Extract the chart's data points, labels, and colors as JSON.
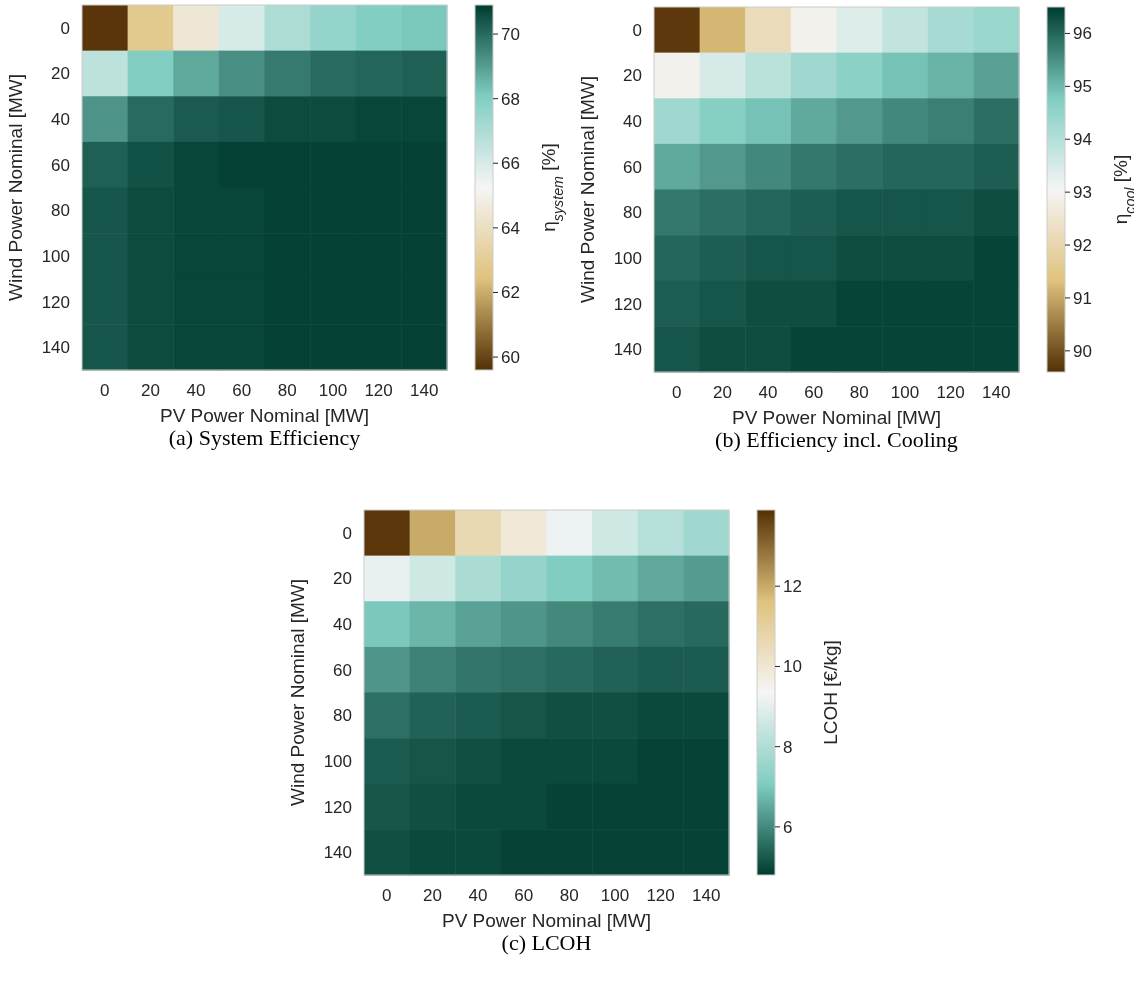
{
  "chart_data": [
    {
      "type": "heatmap",
      "xlabel": "PV Power Nominal [MW]",
      "ylabel": "Wind Power Nominal [MW]",
      "clabel": "η$_{system}$ [%]",
      "annotations": [
        "(a) System Efficiency"
      ],
      "categories": [
        "0",
        "20",
        "40",
        "60",
        "80",
        "100",
        "120",
        "140"
      ],
      "y_categories": [
        "0",
        "20",
        "40",
        "60",
        "80",
        "100",
        "120",
        "140"
      ],
      "colors": [
        "#543005",
        "#dfc27d",
        "#f5f5f5",
        "#80cdc1",
        "#003c30"
      ],
      "clim": [
        59.6,
        70.9
      ],
      "cticks": [
        60,
        62,
        64,
        66,
        68,
        70
      ],
      "cells": [
        [
          59.7,
          62.8,
          64.5,
          66,
          67,
          67.6,
          68,
          68.2
        ],
        [
          66.6,
          68,
          68.8,
          69.3,
          69.7,
          70,
          70.1,
          70.2
        ],
        [
          69.2,
          70,
          70.3,
          70.4,
          70.6,
          70.6,
          70.7,
          70.7
        ],
        [
          70.2,
          70.5,
          70.7,
          70.8,
          70.8,
          70.8,
          70.8,
          70.8
        ],
        [
          70.4,
          70.6,
          70.7,
          70.7,
          70.8,
          70.8,
          70.8,
          70.8
        ],
        [
          70.4,
          70.6,
          70.7,
          70.7,
          70.8,
          70.8,
          70.8,
          70.8
        ],
        [
          70.4,
          70.6,
          70.7,
          70.7,
          70.8,
          70.8,
          70.8,
          70.8
        ],
        [
          70.4,
          70.6,
          70.7,
          70.7,
          70.8,
          70.8,
          70.8,
          70.8
        ]
      ]
    },
    {
      "type": "heatmap",
      "xlabel": "PV Power Nominal [MW]",
      "ylabel": "Wind Power Nominal [MW]",
      "clabel": "η$_{cool}$ [%]",
      "annotations": [
        "(b) Efficiency incl. Cooling"
      ],
      "categories": [
        "0",
        "20",
        "40",
        "60",
        "80",
        "100",
        "120",
        "140"
      ],
      "y_categories": [
        "0",
        "20",
        "40",
        "60",
        "80",
        "100",
        "120",
        "140"
      ],
      "colors": [
        "#543005",
        "#dfc27d",
        "#f5f5f5",
        "#80cdc1",
        "#003c30"
      ],
      "clim": [
        89.6,
        96.5
      ],
      "cticks": [
        90,
        91,
        92,
        93,
        94,
        95,
        96
      ],
      "cells": [
        [
          89.7,
          91.2,
          92.2,
          92.9,
          93.4,
          93.8,
          94.2,
          94.4
        ],
        [
          92.9,
          93.5,
          93.9,
          94.3,
          94.6,
          94.9,
          95.1,
          95.3
        ],
        [
          94.3,
          94.7,
          94.9,
          95.2,
          95.4,
          95.6,
          95.7,
          95.9
        ],
        [
          95.2,
          95.4,
          95.6,
          95.8,
          95.9,
          96.0,
          96.0,
          96.1
        ],
        [
          95.8,
          95.9,
          96.0,
          96.1,
          96.2,
          96.2,
          96.2,
          96.3
        ],
        [
          96.0,
          96.1,
          96.2,
          96.2,
          96.3,
          96.3,
          96.3,
          96.4
        ],
        [
          96.1,
          96.2,
          96.3,
          96.3,
          96.4,
          96.4,
          96.4,
          96.4
        ],
        [
          96.2,
          96.3,
          96.3,
          96.4,
          96.4,
          96.4,
          96.4,
          96.4
        ]
      ]
    },
    {
      "type": "heatmap",
      "xlabel": "PV Power Nominal [MW]",
      "ylabel": "Wind Power Nominal [MW]",
      "clabel": "LCOH [€/kg]",
      "annotations": [
        "(c) LCOH"
      ],
      "categories": [
        "0",
        "20",
        "40",
        "60",
        "80",
        "100",
        "120",
        "140"
      ],
      "y_categories": [
        "0",
        "20",
        "40",
        "60",
        "80",
        "100",
        "120",
        "140"
      ],
      "colors": [
        "#003c30",
        "#80cdc1",
        "#f5f5f5",
        "#dfc27d",
        "#543005"
      ],
      "clim": [
        4.8,
        13.9
      ],
      "cticks": [
        6,
        8,
        10,
        12
      ],
      "cells": [
        [
          13.8,
          12.0,
          10.6,
          9.9,
          9.2,
          8.6,
          8.1,
          7.7
        ],
        [
          9.1,
          8.6,
          7.9,
          7.5,
          7.1,
          6.8,
          6.5,
          6.3
        ],
        [
          7.0,
          6.7,
          6.4,
          6.2,
          6.0,
          5.8,
          5.6,
          5.5
        ],
        [
          6.2,
          5.9,
          5.7,
          5.6,
          5.5,
          5.4,
          5.3,
          5.3
        ],
        [
          5.6,
          5.4,
          5.3,
          5.2,
          5.1,
          5.1,
          5.0,
          5.0
        ],
        [
          5.3,
          5.2,
          5.1,
          5.0,
          5.0,
          5.0,
          4.9,
          4.9
        ],
        [
          5.2,
          5.1,
          5.0,
          5.0,
          4.9,
          4.9,
          4.9,
          4.9
        ],
        [
          5.1,
          5.0,
          5.0,
          4.9,
          4.9,
          4.9,
          4.9,
          4.9
        ]
      ]
    }
  ]
}
